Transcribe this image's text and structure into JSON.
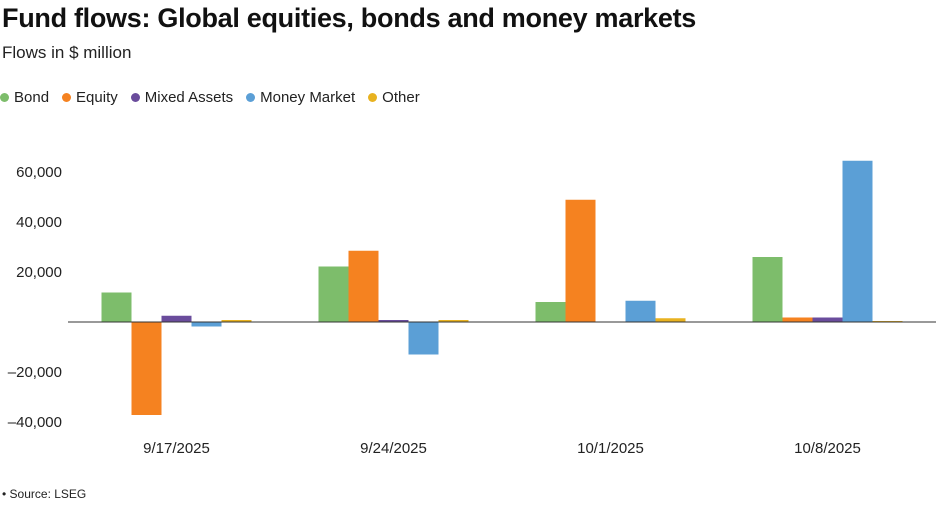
{
  "header": {
    "title": "Fund flows: Global equities, bonds and money markets",
    "subtitle": "Flows in $ million"
  },
  "footer": {
    "source": "Source: LSEG"
  },
  "chart_data": {
    "type": "bar",
    "title": "Fund flows: Global equities, bonds and money markets",
    "subtitle": "Flows in $ million",
    "xlabel": "",
    "ylabel": "",
    "categories": [
      "9/17/2025",
      "9/24/2025",
      "10/1/2025",
      "10/8/2025"
    ],
    "ylim": [
      -40000,
      60000
    ],
    "yticks": [
      -40000,
      -20000,
      0,
      20000,
      40000,
      60000
    ],
    "ytick_labels": [
      "–40,000",
      "–20,000",
      "",
      "20,000",
      "40,000",
      "60,000"
    ],
    "grid": false,
    "legend_position": "top-left",
    "series": [
      {
        "name": "Bond",
        "color": "#7dbd6b",
        "values": [
          11800,
          22200,
          8000,
          26000
        ]
      },
      {
        "name": "Equity",
        "color": "#f58220",
        "values": [
          -37200,
          28500,
          48900,
          1800
        ]
      },
      {
        "name": "Mixed Assets",
        "color": "#6a4c9c",
        "values": [
          2500,
          800,
          0,
          1800
        ]
      },
      {
        "name": "Money Market",
        "color": "#5b9fd6",
        "values": [
          -1800,
          -13000,
          8500,
          64500
        ]
      },
      {
        "name": "Other",
        "color": "#e8b220",
        "values": [
          800,
          800,
          1500,
          400
        ]
      }
    ]
  }
}
